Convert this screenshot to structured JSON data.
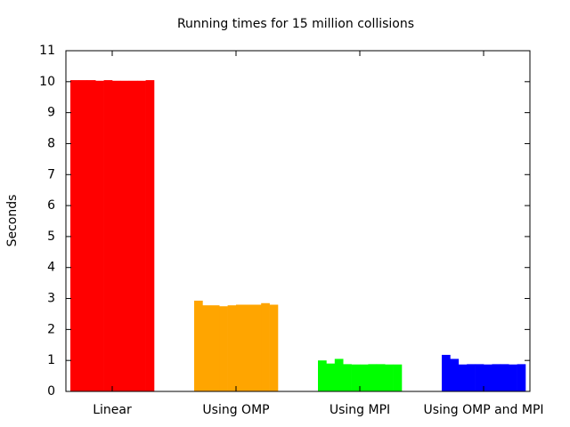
{
  "chart_data": {
    "type": "bar",
    "title": "Running times for 15 million collisions",
    "ylabel": "Seconds",
    "categories": [
      "Linear",
      "Using OMP",
      "Using MPI",
      "Using OMP and MPI"
    ],
    "colors": [
      "#ff0000",
      "#ffa500",
      "#00ff00",
      "#0000ff"
    ],
    "values": [
      [
        10.05,
        10.05,
        10.05,
        10.03,
        10.05,
        10.03,
        10.03,
        10.03,
        10.03,
        10.05
      ],
      [
        2.93,
        2.78,
        2.78,
        2.75,
        2.78,
        2.8,
        2.8,
        2.8,
        2.85,
        2.8
      ],
      [
        1.0,
        0.9,
        1.05,
        0.88,
        0.87,
        0.87,
        0.88,
        0.88,
        0.87,
        0.87
      ],
      [
        1.18,
        1.05,
        0.87,
        0.88,
        0.88,
        0.87,
        0.88,
        0.88,
        0.87,
        0.88
      ]
    ],
    "ylim": [
      0,
      11
    ],
    "yticks": [
      0,
      1,
      2,
      3,
      4,
      5,
      6,
      7,
      8,
      9,
      10,
      11
    ]
  }
}
